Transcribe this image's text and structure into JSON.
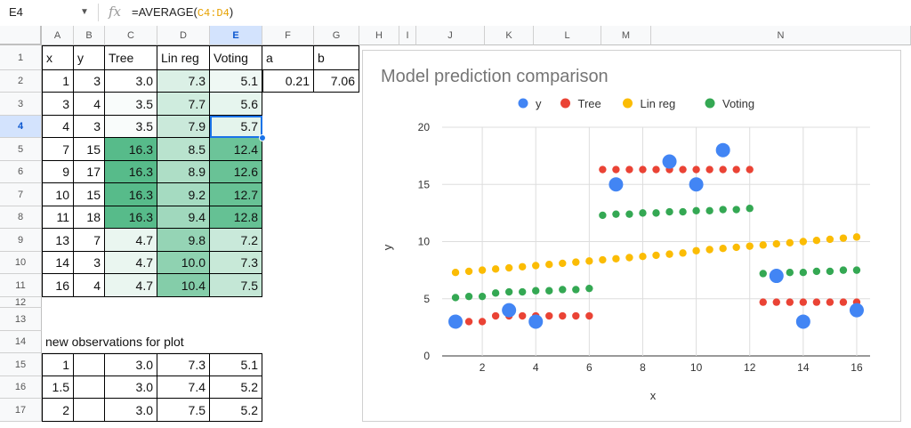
{
  "formula_bar": {
    "cell_ref": "E4",
    "fx_icon": "fx-icon",
    "formula_prefix": "=AVERAGE(",
    "formula_ref": "C4:D4",
    "formula_suffix": ")"
  },
  "columns": [
    "A",
    "B",
    "C",
    "D",
    "E",
    "F",
    "G",
    "H",
    "I",
    "J",
    "K",
    "L",
    "M",
    "N"
  ],
  "selected_col": "E",
  "rows": [
    "1",
    "2",
    "3",
    "4",
    "5",
    "6",
    "7",
    "8",
    "9",
    "10",
    "11",
    "12",
    "13",
    "14",
    "15",
    "16",
    "17"
  ],
  "selected_row": "4",
  "table": {
    "headers": [
      "x",
      "y",
      "Tree",
      "Lin reg",
      "Voting",
      "a",
      "b"
    ],
    "params": {
      "a": "0.21",
      "b": "7.06"
    },
    "data": [
      [
        "1",
        "3",
        "3.0",
        "7.3",
        "5.1"
      ],
      [
        "3",
        "4",
        "3.5",
        "7.7",
        "5.6"
      ],
      [
        "4",
        "3",
        "3.5",
        "7.9",
        "5.7"
      ],
      [
        "7",
        "15",
        "16.3",
        "8.5",
        "12.4"
      ],
      [
        "9",
        "17",
        "16.3",
        "8.9",
        "12.6"
      ],
      [
        "10",
        "15",
        "16.3",
        "9.2",
        "12.7"
      ],
      [
        "11",
        "18",
        "16.3",
        "9.4",
        "12.8"
      ],
      [
        "13",
        "7",
        "4.7",
        "9.8",
        "7.2"
      ],
      [
        "14",
        "3",
        "4.7",
        "10.0",
        "7.3"
      ],
      [
        "16",
        "4",
        "4.7",
        "10.4",
        "7.5"
      ]
    ],
    "new_obs_label": "new observations for plot",
    "new_obs": [
      [
        "1",
        "",
        "3.0",
        "7.3",
        "5.1"
      ],
      [
        "1.5",
        "",
        "3.0",
        "7.4",
        "5.2"
      ],
      [
        "2",
        "",
        "3.0",
        "7.5",
        "5.2"
      ]
    ]
  },
  "colors": {
    "y": "#4285f4",
    "tree": "#ea4335",
    "linreg": "#fbbc04",
    "voting": "#34a853",
    "selection": "#1a73e8"
  },
  "chart_data": {
    "type": "scatter",
    "title": "Model prediction comparison",
    "xlabel": "x",
    "ylabel": "y",
    "xlim": [
      0.5,
      16.5
    ],
    "ylim": [
      0,
      20
    ],
    "xticks": [
      2,
      4,
      6,
      8,
      10,
      12,
      14,
      16
    ],
    "yticks": [
      0,
      5,
      10,
      15,
      20
    ],
    "grid": true,
    "legend_position": "top",
    "series": [
      {
        "name": "y",
        "x": [
          1,
          3,
          4,
          7,
          9,
          10,
          11,
          13,
          14,
          16
        ],
        "values": [
          3,
          4,
          3,
          15,
          17,
          15,
          18,
          7,
          3,
          4
        ]
      },
      {
        "name": "Tree",
        "x": "1 to 16 step 0.5",
        "values": [
          3.0,
          3.0,
          3.0,
          3.5,
          3.5,
          3.5,
          3.5,
          3.5,
          3.5,
          3.5,
          3.5,
          16.3,
          16.3,
          16.3,
          16.3,
          16.3,
          16.3,
          16.3,
          16.3,
          16.3,
          16.3,
          16.3,
          16.3,
          4.7,
          4.7,
          4.7,
          4.7,
          4.7,
          4.7,
          4.7,
          4.7
        ]
      },
      {
        "name": "Lin reg",
        "x": "1 to 16 step 0.5",
        "values": [
          7.3,
          7.4,
          7.5,
          7.6,
          7.7,
          7.8,
          7.9,
          8.0,
          8.1,
          8.2,
          8.3,
          8.4,
          8.5,
          8.6,
          8.7,
          8.8,
          8.9,
          9.0,
          9.2,
          9.3,
          9.4,
          9.5,
          9.6,
          9.7,
          9.8,
          9.9,
          10.0,
          10.1,
          10.2,
          10.3,
          10.4
        ]
      },
      {
        "name": "Voting",
        "x": "1 to 16 step 0.5",
        "values": [
          5.1,
          5.2,
          5.2,
          5.5,
          5.6,
          5.6,
          5.7,
          5.7,
          5.8,
          5.8,
          5.9,
          12.3,
          12.4,
          12.4,
          12.5,
          12.5,
          12.6,
          12.6,
          12.7,
          12.7,
          12.8,
          12.8,
          12.9,
          7.2,
          7.2,
          7.3,
          7.3,
          7.4,
          7.4,
          7.5,
          7.5
        ]
      }
    ]
  }
}
